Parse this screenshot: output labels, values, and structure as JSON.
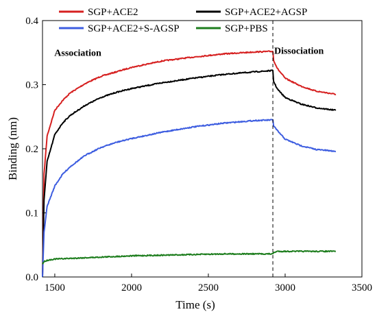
{
  "chart_data": {
    "type": "line",
    "title": "",
    "xlabel": "Time (s)",
    "ylabel": "Binding (nm)",
    "xlim": [
      1420,
      3500
    ],
    "ylim": [
      0.0,
      0.4
    ],
    "xticks": [
      1500,
      2000,
      2500,
      3000,
      3500
    ],
    "yticks": [
      0.0,
      0.1,
      0.2,
      0.3,
      0.4
    ],
    "xtick_labels": [
      "1500",
      "2000",
      "2500",
      "3000",
      "3500"
    ],
    "ytick_labels": [
      "0.0",
      "0.1",
      "0.2",
      "0.3",
      "0.4"
    ],
    "grid": false,
    "legend_position": "top",
    "divider_x": 2920,
    "annotations": [
      {
        "text": "Association",
        "x": 1650,
        "y": 0.345
      },
      {
        "text": "Dissociation",
        "x": 3090,
        "y": 0.348
      }
    ],
    "series": [
      {
        "name": "SGP+ACE2",
        "color": "#d62020",
        "points": [
          [
            1420,
            0.0
          ],
          [
            1430,
            0.16
          ],
          [
            1450,
            0.22
          ],
          [
            1500,
            0.26
          ],
          [
            1550,
            0.275
          ],
          [
            1600,
            0.287
          ],
          [
            1700,
            0.302
          ],
          [
            1800,
            0.313
          ],
          [
            1900,
            0.32
          ],
          [
            2000,
            0.327
          ],
          [
            2200,
            0.337
          ],
          [
            2400,
            0.343
          ],
          [
            2600,
            0.348
          ],
          [
            2800,
            0.351
          ],
          [
            2920,
            0.352
          ],
          [
            2925,
            0.338
          ],
          [
            2950,
            0.325
          ],
          [
            3000,
            0.31
          ],
          [
            3100,
            0.298
          ],
          [
            3200,
            0.29
          ],
          [
            3330,
            0.285
          ]
        ]
      },
      {
        "name": "SGP+ACE2+AGSP",
        "color": "#000000",
        "points": [
          [
            1420,
            0.0
          ],
          [
            1430,
            0.12
          ],
          [
            1450,
            0.18
          ],
          [
            1500,
            0.222
          ],
          [
            1550,
            0.24
          ],
          [
            1600,
            0.252
          ],
          [
            1700,
            0.268
          ],
          [
            1800,
            0.28
          ],
          [
            1900,
            0.288
          ],
          [
            2000,
            0.294
          ],
          [
            2200,
            0.303
          ],
          [
            2400,
            0.31
          ],
          [
            2600,
            0.316
          ],
          [
            2800,
            0.32
          ],
          [
            2920,
            0.322
          ],
          [
            2925,
            0.305
          ],
          [
            2950,
            0.293
          ],
          [
            3000,
            0.28
          ],
          [
            3100,
            0.27
          ],
          [
            3200,
            0.264
          ],
          [
            3330,
            0.26
          ]
        ]
      },
      {
        "name": "SGP+ACE2+S-AGSP",
        "color": "#3d5de0",
        "points": [
          [
            1420,
            0.0
          ],
          [
            1430,
            0.07
          ],
          [
            1450,
            0.11
          ],
          [
            1500,
            0.142
          ],
          [
            1550,
            0.16
          ],
          [
            1600,
            0.172
          ],
          [
            1700,
            0.19
          ],
          [
            1800,
            0.202
          ],
          [
            1900,
            0.21
          ],
          [
            2000,
            0.216
          ],
          [
            2200,
            0.226
          ],
          [
            2400,
            0.234
          ],
          [
            2600,
            0.24
          ],
          [
            2800,
            0.244
          ],
          [
            2920,
            0.245
          ],
          [
            2925,
            0.236
          ],
          [
            2950,
            0.228
          ],
          [
            3000,
            0.215
          ],
          [
            3100,
            0.205
          ],
          [
            3200,
            0.199
          ],
          [
            3330,
            0.196
          ]
        ]
      },
      {
        "name": "SGP+PBS",
        "color": "#1d7d1d",
        "points": [
          [
            1420,
            0.02
          ],
          [
            1430,
            0.024
          ],
          [
            1450,
            0.026
          ],
          [
            1500,
            0.028
          ],
          [
            1600,
            0.029
          ],
          [
            1800,
            0.031
          ],
          [
            2000,
            0.033
          ],
          [
            2200,
            0.034
          ],
          [
            2400,
            0.035
          ],
          [
            2600,
            0.036
          ],
          [
            2800,
            0.036
          ],
          [
            2920,
            0.036
          ],
          [
            2925,
            0.038
          ],
          [
            2950,
            0.04
          ],
          [
            3100,
            0.04
          ],
          [
            3330,
            0.04
          ]
        ]
      }
    ]
  }
}
